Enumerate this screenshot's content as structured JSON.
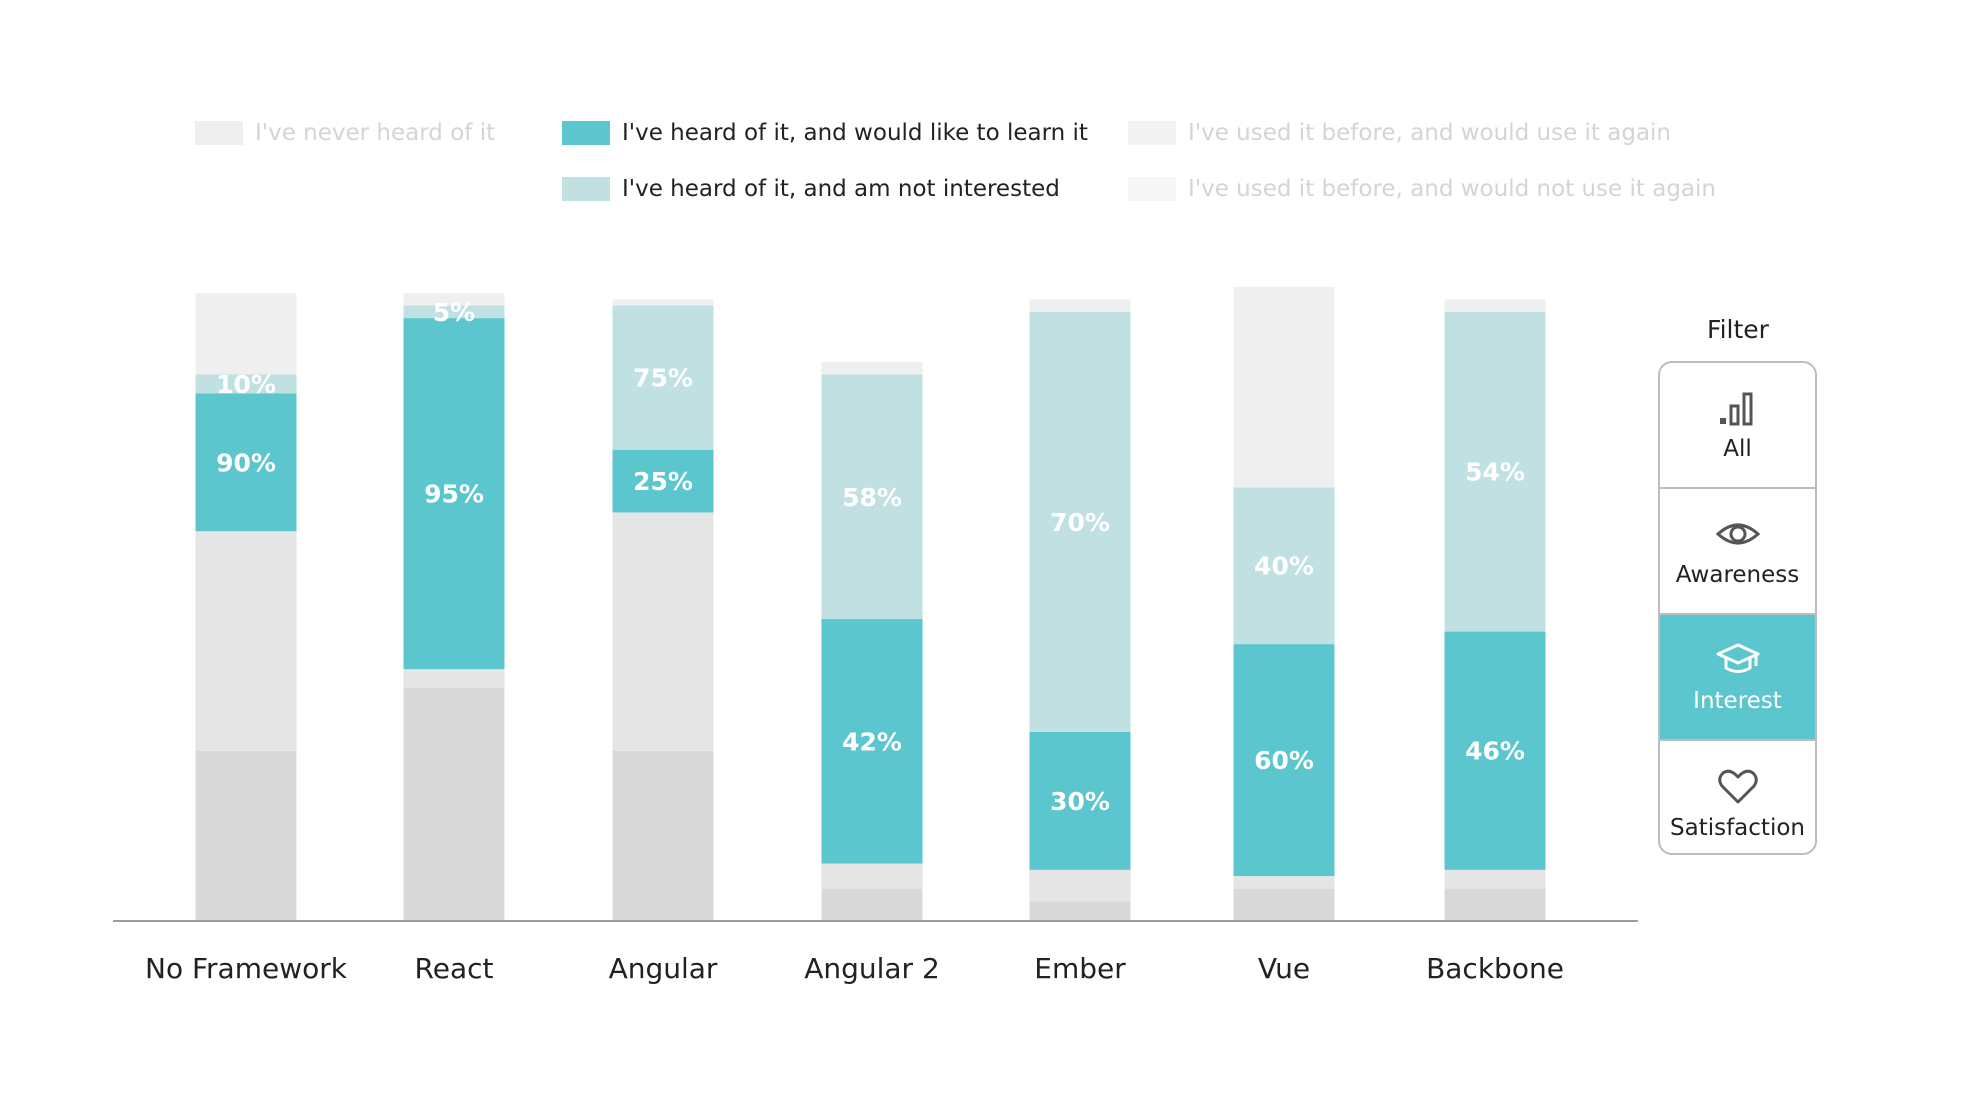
{
  "colors": {
    "never_heard": "#efefef",
    "learn": "#5bc6cd",
    "not_interested": "#c0e0e2",
    "use_again": "#f3f3f3",
    "not_use_again": "#f6f6f6",
    "gray_light": "#e5e5e5",
    "gray_dark": "#d8d8d8",
    "text_on_bar": "#ffffff",
    "axis": "#9e9e9e",
    "filter_selected": "#5bc6cd"
  },
  "legend": [
    {
      "label": "I've never heard of it",
      "color_key": "never_heard",
      "active": false
    },
    {
      "label": "I've heard of it, and would like to learn it",
      "color_key": "learn",
      "active": true
    },
    {
      "label": "I've heard of it, and am not interested",
      "color_key": "not_interested",
      "active": true
    },
    {
      "label": "I've used it before, and would use it again",
      "color_key": "use_again",
      "active": false
    },
    {
      "label": "I've used it before, and would not use it again",
      "color_key": "not_use_again",
      "active": false
    }
  ],
  "filter": {
    "title": "Filter",
    "buttons": [
      {
        "label": "All",
        "icon": "bar-chart-icon",
        "selected": false
      },
      {
        "label": "Awareness",
        "icon": "eye-icon",
        "selected": false
      },
      {
        "label": "Interest",
        "icon": "graduation-cap-icon",
        "selected": true
      },
      {
        "label": "Satisfaction",
        "icon": "heart-icon",
        "selected": false
      }
    ]
  },
  "chart_data": {
    "type": "bar",
    "stacked": true,
    "ylim": [
      0,
      100
    ],
    "categories": [
      "No Framework",
      "React",
      "Angular",
      "Angular 2",
      "Ember",
      "Vue",
      "Backbone"
    ],
    "segments_bottom_to_top": [
      "used_not_again",
      "used_again",
      "not_interested",
      "learn",
      "never_heard"
    ],
    "series": [
      {
        "name": "I've heard of it, and would like to learn it",
        "key": "learn",
        "values": [
          90,
          95,
          25,
          42,
          30,
          60,
          46
        ],
        "labels": [
          "90%",
          "95%",
          "25%",
          "42%",
          "30%",
          "60%",
          "46%"
        ]
      },
      {
        "name": "I've heard of it, and am not interested",
        "key": "not_interested",
        "values": [
          10,
          5,
          75,
          58,
          70,
          40,
          54
        ],
        "labels": [
          "10%",
          "5%",
          "75%",
          "58%",
          "70%",
          "40%",
          "54%"
        ]
      }
    ],
    "shares_full": {
      "used_not_again": [
        27,
        37,
        27,
        5,
        3,
        5,
        5
      ],
      "used_again": [
        35,
        3,
        38,
        4,
        5,
        2,
        3
      ],
      "not_interested": [
        3,
        2,
        23,
        39,
        67,
        25,
        51
      ],
      "learn": [
        22,
        56,
        10,
        39,
        22,
        37,
        38
      ],
      "never_heard": [
        13,
        2,
        1,
        2,
        2,
        32,
        2
      ]
    }
  }
}
